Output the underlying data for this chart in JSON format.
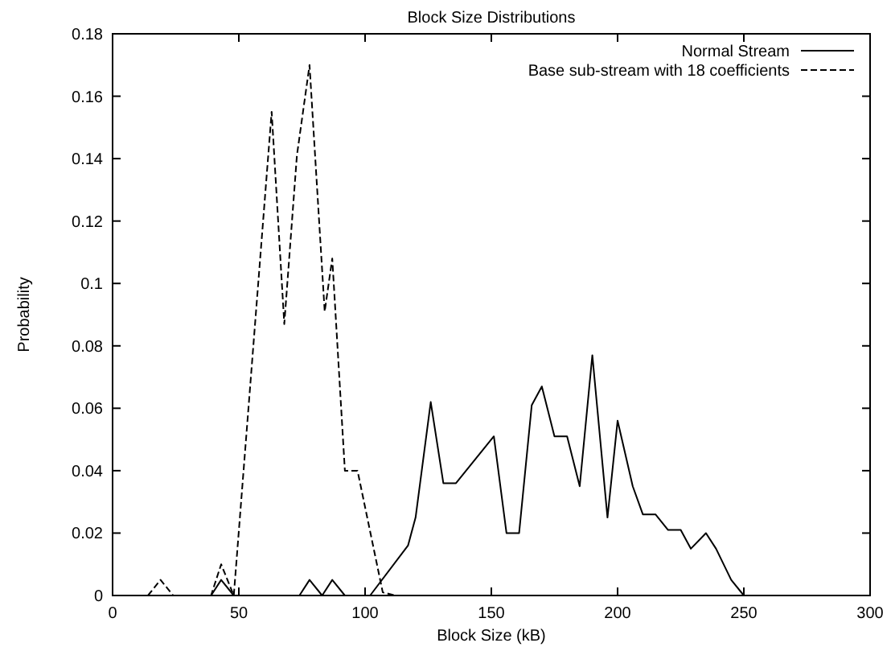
{
  "chart_data": {
    "type": "line",
    "title": "Block Size Distributions",
    "xlabel": "Block Size (kB)",
    "ylabel": "Probability",
    "xlim": [
      0,
      300
    ],
    "xticks": [
      0,
      50,
      100,
      150,
      200,
      250,
      300
    ],
    "ylim": [
      0,
      0.18
    ],
    "yticks": [
      0,
      0.02,
      0.04,
      0.06,
      0.08,
      0.1,
      0.12,
      0.14,
      0.16,
      0.18
    ],
    "legend": "top right",
    "grid": false,
    "series": [
      {
        "name": "Normal Stream",
        "color": "#000000",
        "line_style": "solid",
        "x": [
          39,
          43,
          48,
          74,
          78,
          83,
          87,
          92,
          102,
          117,
          120,
          126,
          131,
          136,
          151,
          156,
          161,
          166,
          170,
          175,
          180,
          185,
          190,
          196,
          200,
          206,
          210,
          215,
          220,
          225,
          229,
          235,
          239,
          245,
          250
        ],
        "values": [
          0,
          0.005,
          0,
          0,
          0.005,
          0,
          0.005,
          0,
          0,
          0.016,
          0.025,
          0.062,
          0.036,
          0.036,
          0.051,
          0.02,
          0.02,
          0.061,
          0.067,
          0.051,
          0.051,
          0.035,
          0.077,
          0.025,
          0.056,
          0.035,
          0.026,
          0.026,
          0.021,
          0.021,
          0.015,
          0.02,
          0.015,
          0.005,
          0
        ]
      },
      {
        "name": "Base sub-stream with 18 coefficients",
        "color": "#000000",
        "line_style": "dashed",
        "x": [
          14,
          19,
          24,
          39,
          43,
          48,
          63,
          68,
          73,
          78,
          84,
          87,
          92,
          97,
          107,
          112
        ],
        "values": [
          0,
          0.005,
          0,
          0,
          0.01,
          0,
          0.155,
          0.087,
          0.141,
          0.17,
          0.091,
          0.108,
          0.04,
          0.04,
          0.001,
          0
        ]
      }
    ]
  }
}
